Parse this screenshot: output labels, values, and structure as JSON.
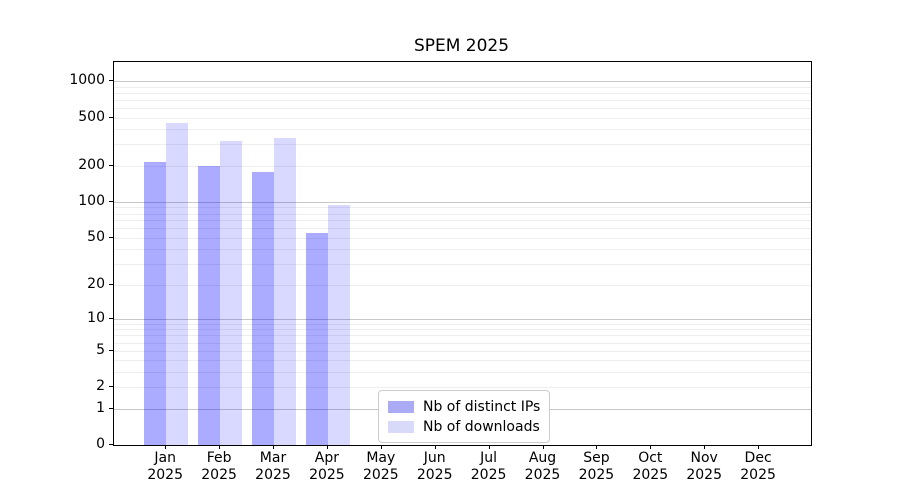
{
  "chart_data": {
    "type": "bar",
    "title": "SPEM 2025",
    "y_scale": "symlog-like, position proportional to log10(1+y)",
    "months": [
      "Jan",
      "Feb",
      "Mar",
      "Apr",
      "May",
      "Jun",
      "Jul",
      "Aug",
      "Sep",
      "Oct",
      "Nov",
      "Dec"
    ],
    "year_label": "2025",
    "categories": [
      "Jan 2025",
      "Feb 2025",
      "Mar 2025",
      "Apr 2025",
      "May 2025",
      "Jun 2025",
      "Jul 2025",
      "Aug 2025",
      "Sep 2025",
      "Oct 2025",
      "Nov 2025",
      "Dec 2025"
    ],
    "series": [
      {
        "name": "Nb of distinct IPs",
        "color": "rgba(0,0,255,0.33)",
        "swatch_color": "#aaaaf5",
        "values": [
          214,
          200,
          176,
          55,
          null,
          null,
          null,
          null,
          null,
          null,
          null,
          null
        ]
      },
      {
        "name": "Nb of downloads",
        "color": "rgba(0,0,255,0.15)",
        "swatch_color": "#d9d9fa",
        "values": [
          448,
          320,
          338,
          94,
          null,
          null,
          null,
          null,
          null,
          null,
          null,
          null
        ]
      }
    ],
    "y_ticks": [
      0,
      1,
      2,
      5,
      10,
      20,
      50,
      100,
      200,
      500,
      1000
    ],
    "ylim": [
      0,
      1435
    ],
    "grid": {
      "major_lines_at": [
        1,
        10,
        100,
        1000
      ],
      "minor_subs": [
        2,
        3,
        4,
        5,
        6,
        7,
        8,
        9
      ],
      "major_color": "#c8c8c8",
      "minor_color": "#eeeeee"
    },
    "legend": {
      "position": "inside bottom, left of center",
      "border_color": "#cccccc"
    },
    "text_color": "#000000",
    "background_color": "#ffffff"
  }
}
